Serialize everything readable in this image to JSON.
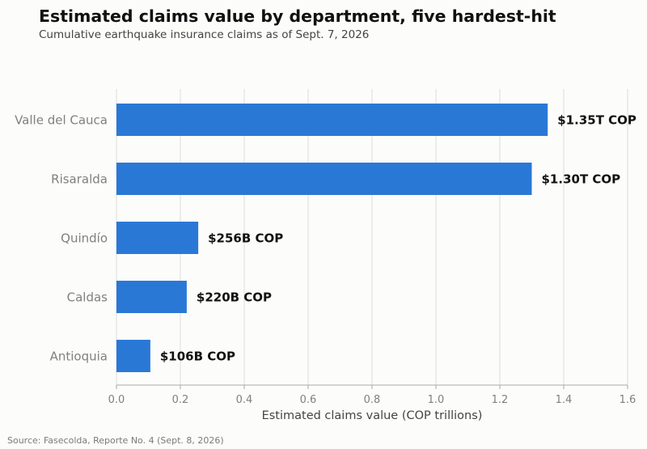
{
  "chart_data": {
    "type": "bar",
    "orientation": "horizontal",
    "title": "Estimated claims value by department, five hardest-hit",
    "subtitle": "Cumulative earthquake insurance claims as of Sept. 7, 2026",
    "source": "Source: Fasecolda, Reporte No. 4 (Sept. 8, 2026)",
    "xlabel": "Estimated claims value (COP trillions)",
    "ylabel": "",
    "xlim": [
      0,
      1.6
    ],
    "xticks": [
      "0.0",
      "0.2",
      "0.4",
      "0.6",
      "0.8",
      "1.0",
      "1.2",
      "1.4",
      "1.6"
    ],
    "grid": true,
    "categories": [
      "Valle del Cauca",
      "Risaralda",
      "Quindío",
      "Caldas",
      "Antioquia"
    ],
    "values": [
      1.35,
      1.3,
      0.256,
      0.22,
      0.106
    ],
    "data_labels": [
      "$1.35T COP",
      "$1.30T COP",
      "$256B COP",
      "$220B COP",
      "$106B COP"
    ],
    "bar_color": "#2a78d6",
    "grid_color": "#dcdcdc",
    "axis_color": "#aaaaaa"
  }
}
